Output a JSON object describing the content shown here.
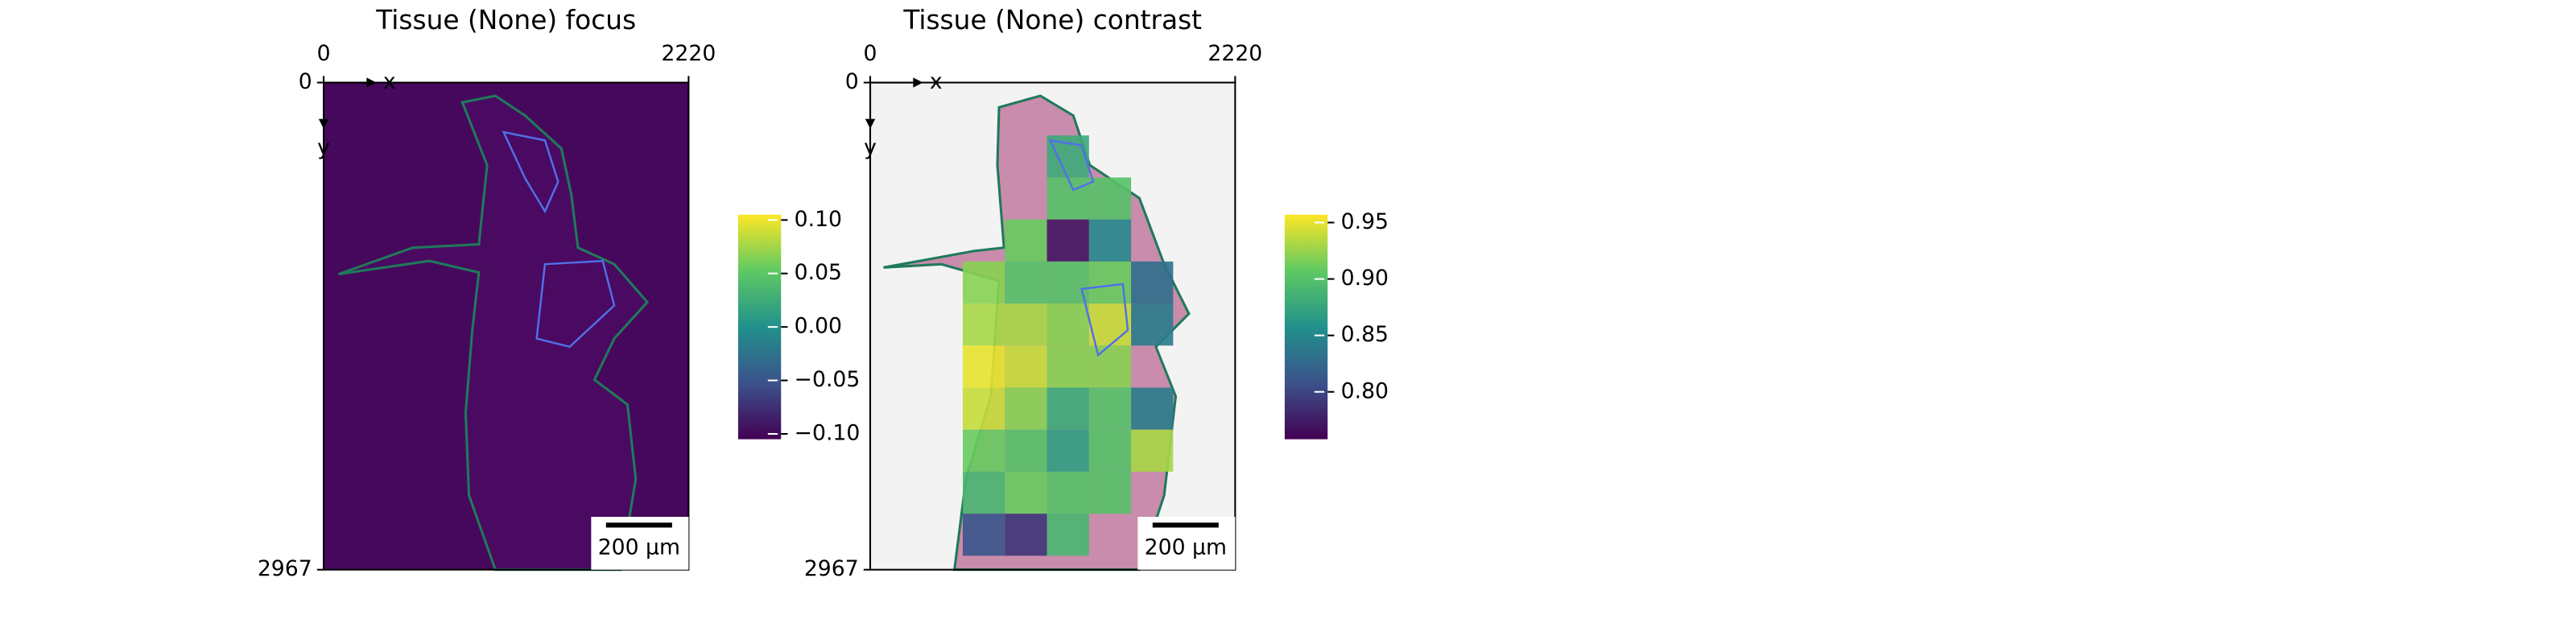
{
  "chart_data": [
    {
      "type": "image",
      "title": "Tissue (None) focus",
      "xlabel": "x",
      "ylabel": "y",
      "xlim": [
        0,
        2220
      ],
      "ylim": [
        2967,
        0
      ],
      "xticks": [
        0,
        2220
      ],
      "yticks": [
        0,
        2967
      ],
      "scalebar_label": "200 µm",
      "colorbar": {
        "lim": [
          -0.105,
          0.105
        ],
        "ticks": [
          {
            "value": 0.1,
            "label": "0.10"
          },
          {
            "value": 0.05,
            "label": "0.05"
          },
          {
            "value": 0,
            "label": "0.00"
          },
          {
            "value": -0.05,
            "label": "−0.05"
          },
          {
            "value": -0.1,
            "label": "−0.10"
          }
        ]
      }
    },
    {
      "type": "heatmap",
      "title": "Tissue (None) contrast",
      "xlabel": "x",
      "ylabel": "y",
      "xlim": [
        0,
        2220
      ],
      "ylim": [
        2967,
        0
      ],
      "xticks": [
        0,
        2220
      ],
      "yticks": [
        0,
        2967
      ],
      "scalebar_label": "200 µm",
      "tile_size": 256,
      "tile_x": [
        563,
        819,
        1075,
        1331,
        1587
      ],
      "tile_y": [
        322,
        578,
        834,
        1090,
        1346,
        1602,
        1858,
        2114,
        2370,
        2626
      ],
      "values": [
        [
          null,
          null,
          0.88,
          null,
          null
        ],
        [
          null,
          null,
          0.9,
          0.9,
          null
        ],
        [
          null,
          0.91,
          0.77,
          0.85,
          null
        ],
        [
          0.92,
          0.9,
          0.9,
          0.91,
          0.83
        ],
        [
          0.93,
          0.93,
          0.92,
          0.94,
          0.84
        ],
        [
          0.95,
          0.94,
          0.92,
          0.92,
          null
        ],
        [
          0.94,
          0.92,
          0.88,
          0.9,
          0.84
        ],
        [
          0.91,
          0.9,
          0.87,
          0.9,
          0.93
        ],
        [
          0.89,
          0.91,
          0.9,
          0.9,
          null
        ],
        [
          0.81,
          0.79,
          0.89,
          null,
          null
        ]
      ],
      "colorbar": {
        "lim": [
          0.758,
          0.957
        ],
        "ticks": [
          {
            "value": 0.95,
            "label": "0.95"
          },
          {
            "value": 0.9,
            "label": "0.90"
          },
          {
            "value": 0.85,
            "label": "0.85"
          },
          {
            "value": 0.8,
            "label": "0.80"
          }
        ]
      }
    }
  ]
}
